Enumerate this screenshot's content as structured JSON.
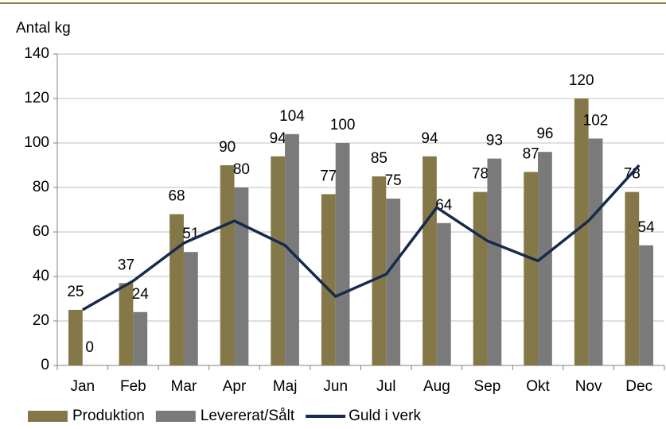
{
  "chart_data": {
    "type": "bar_line",
    "ylabel": "Antal kg",
    "categories": [
      "Jan",
      "Feb",
      "Mar",
      "Apr",
      "Maj",
      "Jun",
      "Jul",
      "Aug",
      "Sep",
      "Okt",
      "Nov",
      "Dec"
    ],
    "series": [
      {
        "name": "Produktion",
        "type": "bar",
        "color": "#857848",
        "values": [
          25,
          37,
          68,
          90,
          94,
          77,
          85,
          94,
          78,
          87,
          120,
          78
        ]
      },
      {
        "name": "Levererat/Sålt",
        "type": "bar",
        "color": "#7a7a7a",
        "values": [
          0,
          24,
          51,
          80,
          104,
          100,
          75,
          64,
          93,
          96,
          102,
          54
        ]
      },
      {
        "name": "Guld i verk",
        "type": "line",
        "color": "#172a4e",
        "values": [
          25,
          38,
          55,
          65,
          54,
          31,
          41,
          71,
          56,
          47,
          65,
          90
        ]
      }
    ],
    "ylim": [
      0,
      140
    ],
    "yticks": [
      0,
      20,
      40,
      60,
      80,
      100,
      120,
      140
    ],
    "grid": true
  }
}
